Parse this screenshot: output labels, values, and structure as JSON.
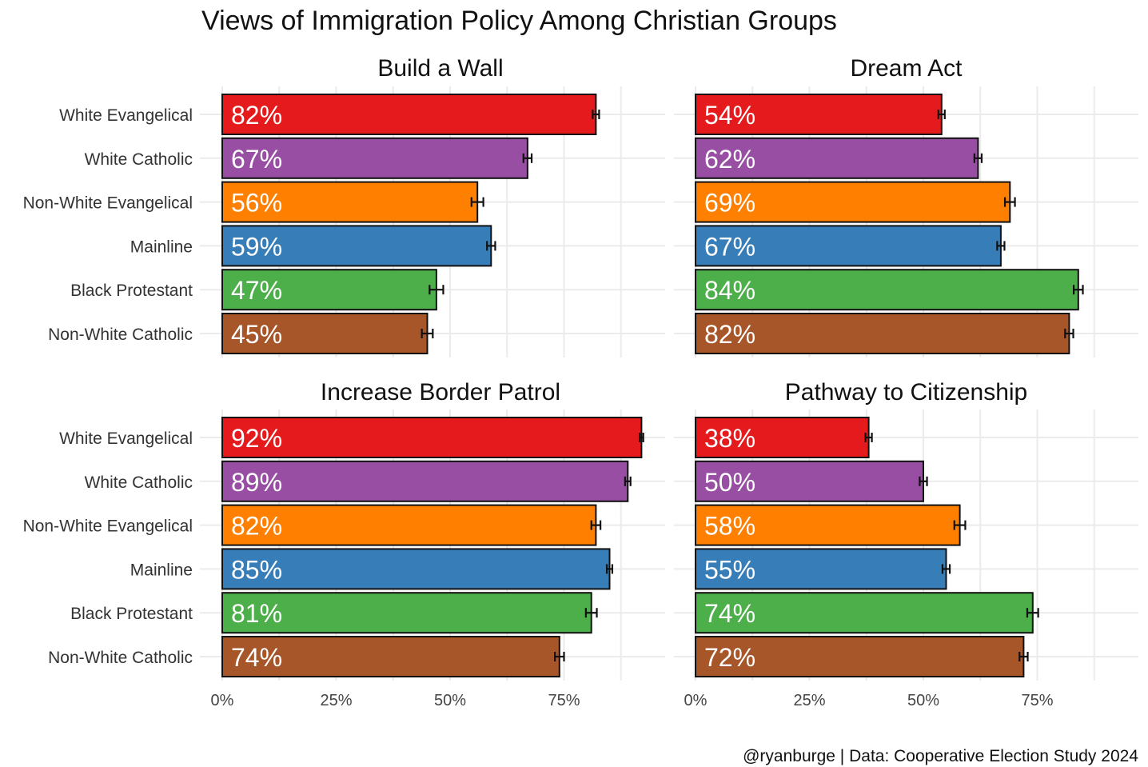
{
  "chart_data": {
    "type": "bar",
    "orientation": "horizontal",
    "title": "Views of Immigration Policy Among Christian Groups",
    "caption": "@ryanburge | Data: Cooperative Election Study 2024",
    "categories": [
      "White Evangelical",
      "White Catholic",
      "Non-White Evangelical",
      "Mainline",
      "Black Protestant",
      "Non-White Catholic"
    ],
    "colors": [
      "#E41A1C",
      "#984EA3",
      "#FF7F00",
      "#377EB8",
      "#4DAF4A",
      "#A65628"
    ],
    "xlim": [
      0,
      100
    ],
    "x_ticks": [
      "0%",
      "25%",
      "50%",
      "75%"
    ],
    "x_tick_values": [
      0,
      25,
      50,
      75
    ],
    "grid": true,
    "legend": "none",
    "panels": [
      {
        "title": "Build a Wall",
        "values": [
          82,
          67,
          56,
          59,
          47,
          45
        ],
        "labels": [
          "82%",
          "67%",
          "56%",
          "59%",
          "47%",
          "45%"
        ],
        "error_margin": [
          0.7,
          0.9,
          1.3,
          0.9,
          1.5,
          1.2
        ]
      },
      {
        "title": "Dream Act",
        "values": [
          54,
          62,
          69,
          67,
          84,
          82
        ],
        "labels": [
          "54%",
          "62%",
          "69%",
          "67%",
          "84%",
          "82%"
        ],
        "error_margin": [
          0.7,
          0.8,
          1.1,
          0.8,
          1.0,
          0.9
        ]
      },
      {
        "title": "Increase Border Patrol",
        "values": [
          92,
          89,
          82,
          85,
          81,
          74
        ],
        "labels": [
          "92%",
          "89%",
          "82%",
          "85%",
          "81%",
          "74%"
        ],
        "error_margin": [
          0.4,
          0.6,
          1.0,
          0.6,
          1.2,
          1.0
        ]
      },
      {
        "title": "Pathway to Citizenship",
        "values": [
          38,
          50,
          58,
          55,
          74,
          72
        ],
        "labels": [
          "38%",
          "50%",
          "58%",
          "55%",
          "74%",
          "72%"
        ],
        "error_margin": [
          0.7,
          0.8,
          1.2,
          0.8,
          1.2,
          0.9
        ]
      }
    ]
  }
}
